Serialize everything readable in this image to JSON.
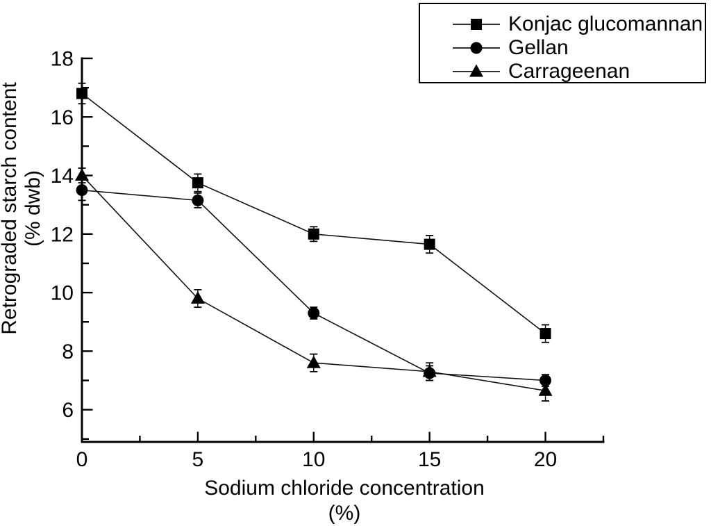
{
  "figure_title": "",
  "chart_data": {
    "type": "line",
    "title": "",
    "x": [
      0,
      5,
      10,
      15,
      20
    ],
    "series": [
      {
        "name": "Konjac glucomannan",
        "marker": "square",
        "values": [
          16.8,
          13.75,
          12.0,
          11.65,
          8.6
        ],
        "errors": [
          0.35,
          0.3,
          0.25,
          0.3,
          0.3
        ]
      },
      {
        "name": "Gellan",
        "marker": "circle",
        "values": [
          13.5,
          13.15,
          9.3,
          7.25,
          7.0
        ],
        "errors": [
          0.35,
          0.25,
          0.2,
          0.25,
          0.2
        ]
      },
      {
        "name": "Carrageenan",
        "marker": "triangle",
        "values": [
          14.0,
          9.8,
          7.6,
          7.3,
          6.65
        ],
        "errors": [
          0.25,
          0.3,
          0.3,
          0.3,
          0.35
        ]
      }
    ],
    "xlabel": "Sodium chloride concentration",
    "xlabel_unit": "(%)",
    "ylabel": "Retrograded starch content",
    "ylabel_unit": "(% dwb)",
    "xlim": [
      0,
      22.5
    ],
    "ylim": [
      4.9,
      18
    ],
    "x_major_ticks": [
      0,
      5,
      10,
      15,
      20
    ],
    "x_minor_ticks": [
      2.5,
      7.5,
      12.5,
      17.5,
      22.5
    ],
    "y_major_ticks": [
      6,
      8,
      10,
      12,
      14,
      16,
      18
    ],
    "y_minor_ticks": [
      5,
      7,
      9,
      11,
      13,
      15,
      17
    ],
    "x_tick_labels": [
      "0",
      "5",
      "10",
      "15",
      "20"
    ],
    "y_tick_labels": [
      "6",
      "8",
      "10",
      "12",
      "14",
      "16",
      "18"
    ],
    "legend_position": "top-right",
    "grid": false,
    "line_color": "#111111",
    "marker_color": "#000000",
    "axis_color": "#000000",
    "background": "#ffffff"
  }
}
